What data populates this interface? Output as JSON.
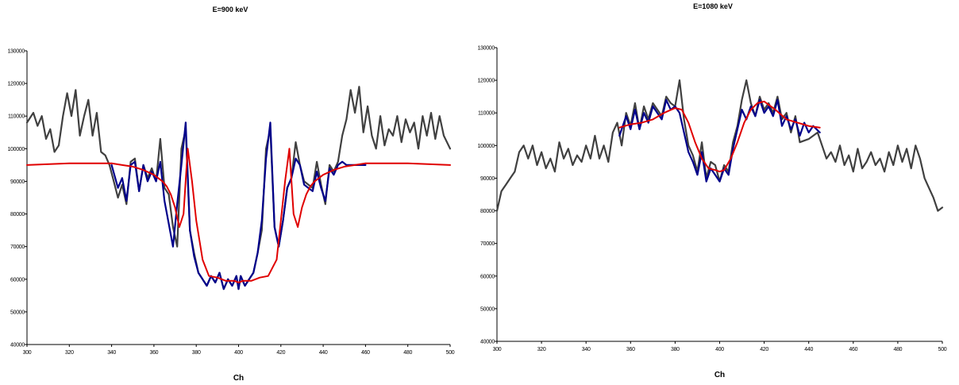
{
  "chart_data": [
    {
      "type": "line",
      "title": "E=900 keV",
      "xlabel": "Ch",
      "ylabel": "",
      "xlim": [
        300,
        500
      ],
      "ylim": [
        40000,
        130000
      ],
      "x_ticks": [
        "300",
        "320",
        "340",
        "360",
        "380",
        "400",
        "420",
        "440",
        "460",
        "480",
        "500"
      ],
      "y_ticks": [
        "40000",
        "50000",
        "60000",
        "70000",
        "80000",
        "90000",
        "100000",
        "110000",
        "120000",
        "130000"
      ],
      "grid": false,
      "colors": {
        "raw": "#404040",
        "fit_window": "#00008b",
        "smooth": "#e00000"
      },
      "series": [
        {
          "role": "raw",
          "x": [
            300,
            303,
            305,
            307,
            309,
            311,
            313,
            315,
            317,
            319,
            321,
            323,
            325,
            327,
            329,
            331,
            333,
            335,
            337,
            339,
            341,
            343,
            345,
            347,
            349,
            351,
            353,
            355,
            357,
            359,
            361,
            363,
            365,
            367,
            369,
            371,
            373,
            375,
            377,
            379,
            381,
            383,
            385,
            387,
            389,
            391,
            393,
            395,
            397,
            399,
            400,
            401,
            403,
            405,
            407,
            409,
            411,
            413,
            415,
            417,
            419,
            421,
            423,
            425,
            427,
            429,
            431,
            433,
            435,
            437,
            439,
            441,
            443,
            445,
            447,
            449,
            451,
            453,
            455,
            457,
            459,
            461,
            463,
            465,
            467,
            469,
            471,
            473,
            475,
            477,
            479,
            481,
            483,
            485,
            487,
            489,
            491,
            493,
            495,
            497,
            500
          ],
          "y": [
            108000,
            111000,
            107000,
            110000,
            103000,
            106000,
            99000,
            101000,
            110000,
            117000,
            110000,
            118000,
            104000,
            110000,
            115000,
            104000,
            111000,
            99000,
            98000,
            95000,
            90000,
            85000,
            89000,
            83000,
            96000,
            97000,
            87000,
            95000,
            91000,
            94000,
            90000,
            103000,
            88000,
            86000,
            76000,
            70000,
            100000,
            106000,
            75000,
            68000,
            62000,
            60000,
            58000,
            61000,
            59000,
            62000,
            57000,
            60000,
            58000,
            61000,
            57000,
            61000,
            58000,
            60000,
            62000,
            68000,
            75000,
            100000,
            106000,
            76000,
            70000,
            78000,
            88000,
            91000,
            102000,
            95000,
            90000,
            89000,
            88000,
            96000,
            89000,
            83000,
            95000,
            93000,
            96000,
            104000,
            109000,
            118000,
            111000,
            119000,
            105000,
            113000,
            104000,
            100000,
            110000,
            101000,
            106000,
            104000,
            110000,
            102000,
            109000,
            105000,
            108000,
            100000,
            110000,
            104000,
            111000,
            103000,
            110000,
            104000,
            100000
          ]
        },
        {
          "role": "fit_window",
          "x": [
            340,
            343,
            345,
            347,
            349,
            351,
            353,
            355,
            357,
            359,
            361,
            363,
            365,
            367,
            369,
            371,
            373,
            375,
            377,
            379,
            381,
            383,
            385,
            387,
            389,
            391,
            393,
            395,
            397,
            399,
            400,
            401,
            403,
            405,
            407,
            409,
            411,
            413,
            415,
            417,
            419,
            421,
            423,
            425,
            427,
            429,
            431,
            433,
            435,
            437,
            439,
            441,
            443,
            445,
            447,
            449,
            451,
            453,
            455,
            457,
            460
          ],
          "y": [
            95000,
            88000,
            91000,
            84000,
            95000,
            96000,
            87000,
            95000,
            90000,
            93000,
            90000,
            96000,
            84000,
            77000,
            70000,
            83000,
            95000,
            108000,
            75000,
            67000,
            62000,
            60000,
            58000,
            61000,
            59000,
            62000,
            57000,
            60000,
            58000,
            61000,
            57000,
            61000,
            58000,
            60000,
            62000,
            68000,
            78000,
            97000,
            108000,
            76000,
            70000,
            78000,
            88000,
            91000,
            97000,
            95000,
            89000,
            88000,
            87000,
            93000,
            88000,
            84000,
            94000,
            92000,
            95000,
            96000,
            95000,
            95000,
            95000,
            95000,
            95000
          ]
        },
        {
          "role": "smooth",
          "x": [
            300,
            320,
            340,
            345,
            350,
            355,
            360,
            364,
            366,
            368,
            370,
            372,
            374,
            376,
            378,
            380,
            383,
            386,
            390,
            394,
            398,
            400,
            402,
            406,
            410,
            414,
            418,
            420,
            422,
            424,
            426,
            428,
            430,
            432,
            434,
            436,
            440,
            445,
            450,
            455,
            460,
            480,
            500
          ],
          "y": [
            95000,
            95500,
            95500,
            95000,
            94500,
            93500,
            92000,
            90000,
            88500,
            86000,
            82000,
            76000,
            80000,
            100000,
            90000,
            78000,
            66000,
            61000,
            60500,
            59500,
            59500,
            59000,
            59500,
            59500,
            60500,
            61000,
            66000,
            78000,
            90000,
            100000,
            80000,
            76000,
            82000,
            86000,
            88500,
            90000,
            92000,
            93500,
            94500,
            95000,
            95500,
            95500,
            95000
          ]
        }
      ]
    },
    {
      "type": "line",
      "title": "E=1080 keV",
      "xlabel": "Ch",
      "ylabel": "",
      "xlim": [
        300,
        500
      ],
      "ylim": [
        40000,
        130000
      ],
      "x_ticks": [
        "300",
        "320",
        "340",
        "360",
        "380",
        "400",
        "420",
        "440",
        "460",
        "480",
        "500"
      ],
      "y_ticks": [
        "40000",
        "50000",
        "60000",
        "70000",
        "80000",
        "90000",
        "100000",
        "110000",
        "120000",
        "130000"
      ],
      "grid": false,
      "colors": {
        "raw": "#404040",
        "fit_window": "#00008b",
        "smooth": "#e00000"
      },
      "series": [
        {
          "role": "raw",
          "x": [
            300,
            302,
            304,
            306,
            308,
            310,
            312,
            314,
            316,
            318,
            320,
            322,
            324,
            326,
            328,
            330,
            332,
            334,
            336,
            338,
            340,
            342,
            344,
            346,
            348,
            350,
            352,
            354,
            356,
            358,
            360,
            362,
            364,
            366,
            368,
            370,
            372,
            374,
            376,
            378,
            380,
            382,
            384,
            386,
            388,
            390,
            392,
            394,
            396,
            398,
            400,
            402,
            404,
            406,
            408,
            410,
            412,
            414,
            416,
            418,
            420,
            422,
            424,
            426,
            428,
            430,
            432,
            434,
            436,
            440,
            444,
            446,
            448,
            450,
            452,
            454,
            456,
            458,
            460,
            462,
            464,
            466,
            468,
            470,
            472,
            474,
            476,
            478,
            480,
            482,
            484,
            486,
            488,
            490,
            492,
            494,
            496,
            498,
            500
          ],
          "y": [
            80000,
            86000,
            88000,
            90000,
            92000,
            98000,
            100000,
            96000,
            100000,
            94000,
            98000,
            93000,
            96000,
            92000,
            101000,
            96000,
            99000,
            94000,
            97000,
            95000,
            100000,
            96000,
            103000,
            96000,
            100000,
            95000,
            104000,
            107000,
            100000,
            110000,
            106000,
            113000,
            105000,
            112000,
            108000,
            113000,
            111000,
            109000,
            115000,
            113000,
            112000,
            120000,
            108000,
            100000,
            97000,
            92000,
            101000,
            90000,
            95000,
            94000,
            89000,
            94000,
            92000,
            101000,
            106000,
            114000,
            120000,
            113000,
            109000,
            115000,
            111000,
            113000,
            110000,
            115000,
            108000,
            110000,
            104000,
            109000,
            101000,
            102000,
            104000,
            100000,
            96000,
            98000,
            95000,
            100000,
            94000,
            97000,
            92000,
            99000,
            93000,
            95000,
            98000,
            94000,
            96000,
            92000,
            98000,
            94000,
            100000,
            95000,
            99000,
            93000,
            100000,
            96000,
            90000,
            87000,
            84000,
            80000,
            81000
          ]
        },
        {
          "role": "fit_window",
          "x": [
            355,
            358,
            360,
            362,
            364,
            366,
            368,
            370,
            372,
            374,
            376,
            378,
            380,
            382,
            384,
            386,
            388,
            390,
            392,
            394,
            396,
            398,
            400,
            402,
            404,
            406,
            408,
            410,
            412,
            414,
            416,
            418,
            420,
            422,
            424,
            426,
            428,
            430,
            432,
            434,
            436,
            438,
            440,
            442,
            445
          ],
          "y": [
            103000,
            109000,
            105000,
            111000,
            105000,
            110000,
            107000,
            112000,
            110000,
            108000,
            114000,
            111000,
            112000,
            110000,
            104000,
            98000,
            95000,
            91000,
            98000,
            89000,
            93000,
            91000,
            89000,
            93000,
            91000,
            99000,
            105000,
            111000,
            108000,
            112000,
            109000,
            114000,
            110000,
            112000,
            109000,
            114000,
            106000,
            109000,
            105000,
            108000,
            103000,
            107000,
            104000,
            106000,
            104000
          ]
        },
        {
          "role": "smooth",
          "x": [
            355,
            360,
            365,
            370,
            375,
            380,
            383,
            386,
            389,
            392,
            395,
            398,
            400,
            402,
            405,
            408,
            411,
            414,
            417,
            420,
            425,
            430,
            435,
            440,
            445
          ],
          "y": [
            105500,
            106500,
            107000,
            108000,
            110000,
            111500,
            111000,
            107000,
            101000,
            96000,
            93000,
            92500,
            92000,
            92500,
            96000,
            101000,
            107000,
            111000,
            113000,
            113500,
            111000,
            108000,
            107000,
            106000,
            105500
          ]
        }
      ]
    }
  ]
}
